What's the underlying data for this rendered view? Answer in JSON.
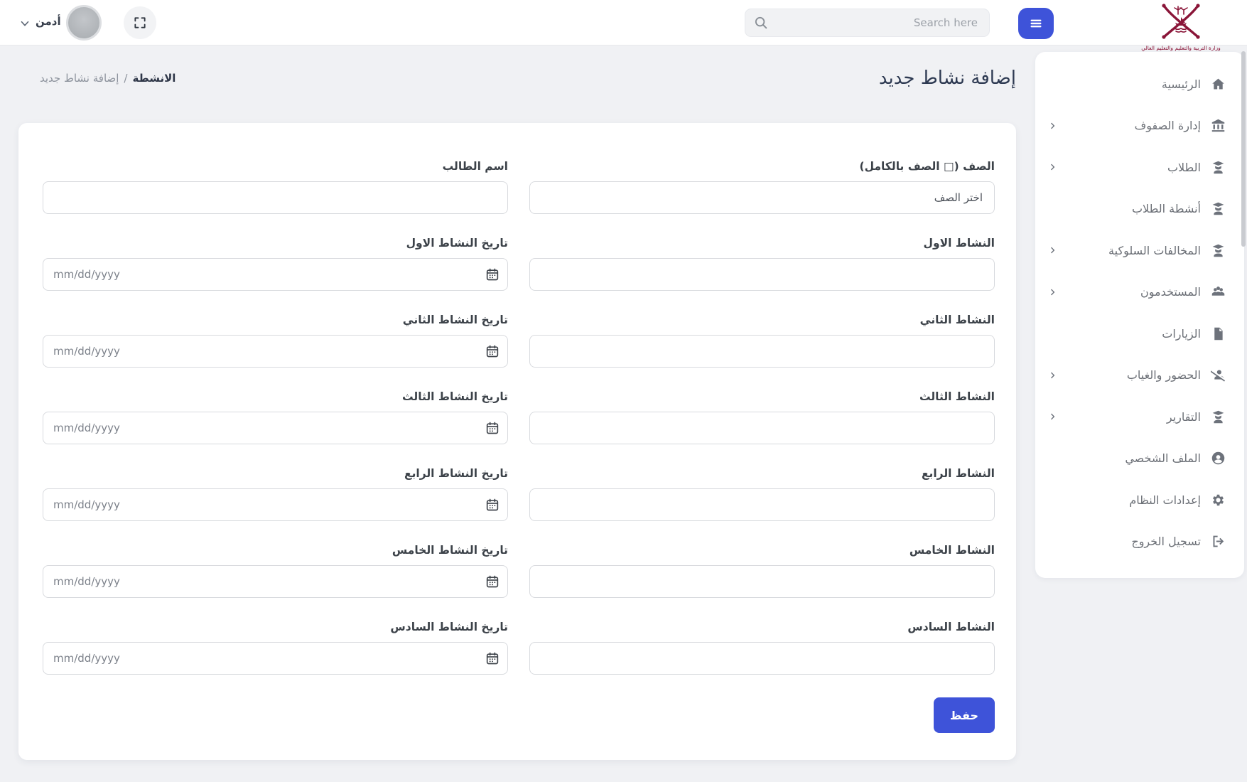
{
  "colors": {
    "accent": "#3e53d9",
    "logo_maroon": "#8a1538"
  },
  "topbar": {
    "admin_label": "أدمن",
    "admin_chevron_icon": "chevron-down-icon",
    "avatar_icon": "user-avatar",
    "fullscreen_icon": "fullscreen-icon",
    "search_placeholder": "Search here",
    "search_icon": "search-icon",
    "menu_icon": "menu-icon",
    "logo_icon": "qatar-moe-emblem",
    "logo_caption": "وزارة التربية والتعليم والتعليم العالي"
  },
  "page": {
    "title": "إضافة نشاط جديد",
    "breadcrumb": {
      "parent": "الانشطة",
      "separator": "/",
      "current": "إضافة نشاط جديد"
    }
  },
  "sidebar": {
    "items": [
      {
        "label": "الرئيسية",
        "icon": "home-icon",
        "chevron": false
      },
      {
        "label": "إدارة الصفوف",
        "icon": "university-icon",
        "chevron": true
      },
      {
        "label": "الطلاب",
        "icon": "student-icon",
        "chevron": true
      },
      {
        "label": "أنشطة الطلاب",
        "icon": "student-icon",
        "chevron": false
      },
      {
        "label": "المخالفات السلوكية",
        "icon": "student-icon",
        "chevron": true
      },
      {
        "label": "المستخدمون",
        "icon": "users-icon",
        "chevron": true
      },
      {
        "label": "الزيارات",
        "icon": "file-icon",
        "chevron": false
      },
      {
        "label": "الحضور والغياب",
        "icon": "user-slash-icon",
        "chevron": true
      },
      {
        "label": "التقارير",
        "icon": "student-icon",
        "chevron": true
      },
      {
        "label": "الملف الشخصي",
        "icon": "user-circle-icon",
        "chevron": false
      },
      {
        "label": "إعدادات النظام",
        "icon": "gear-icon",
        "chevron": false
      },
      {
        "label": "تسجيل الخروج",
        "icon": "logout-icon",
        "chevron": false
      }
    ]
  },
  "form": {
    "row1": {
      "class_label": "الصف (□ الصف بالكامل)",
      "class_value": "اختر الصف",
      "student_label": "اسم الطالب",
      "student_value": ""
    },
    "activities": [
      {
        "name_label": "النشاط الاول",
        "date_label": "تاريخ النشاط الاول"
      },
      {
        "name_label": "النشاط الثاني",
        "date_label": "تاريخ النشاط الثاني"
      },
      {
        "name_label": "النشاط الثالث",
        "date_label": "تاريخ النشاط الثالث"
      },
      {
        "name_label": "النشاط الرابع",
        "date_label": "تاريخ النشاط الرابع"
      },
      {
        "name_label": "النشاط الخامس",
        "date_label": "تاريخ النشاط الخامس"
      },
      {
        "name_label": "النشاط السادس",
        "date_label": "تاريخ النشاط السادس"
      }
    ],
    "date_placeholder": "mm/dd/yyyy",
    "save_label": "حفظ"
  }
}
